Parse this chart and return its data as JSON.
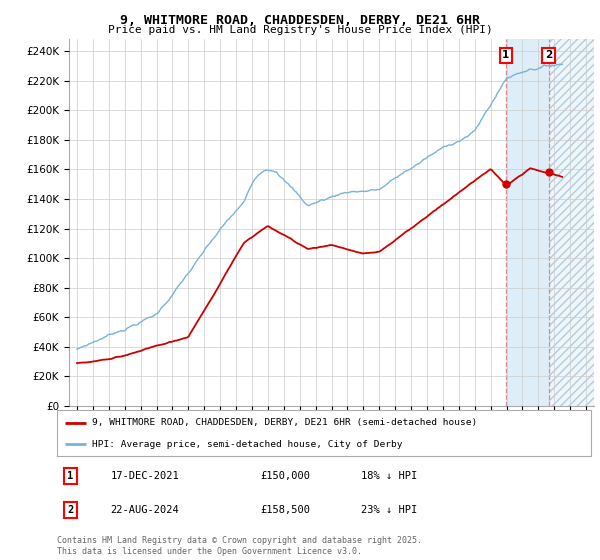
{
  "title": "9, WHITMORE ROAD, CHADDESDEN, DERBY, DE21 6HR",
  "subtitle": "Price paid vs. HM Land Registry's House Price Index (HPI)",
  "ylabel_ticks": [
    "£0",
    "£20K",
    "£40K",
    "£60K",
    "£80K",
    "£100K",
    "£120K",
    "£140K",
    "£160K",
    "£180K",
    "£200K",
    "£220K",
    "£240K"
  ],
  "ylim": [
    0,
    248000
  ],
  "xlim_start": 1994.5,
  "xlim_end": 2027.5,
  "hpi_color": "#7ab3d8",
  "price_color": "#cc0000",
  "vline_color": "#e08080",
  "marker1_x": 2021.96,
  "marker1_y": 150000,
  "marker2_x": 2024.64,
  "marker2_y": 158500,
  "vline1_x": 2021.96,
  "vline2_x": 2024.64,
  "shade_between_start": 2021.96,
  "shade_between_end": 2024.64,
  "hatch_start": 2024.64,
  "hatch_end": 2027.5,
  "legend_line1": "9, WHITMORE ROAD, CHADDESDEN, DERBY, DE21 6HR (semi-detached house)",
  "legend_line2": "HPI: Average price, semi-detached house, City of Derby",
  "table_rows": [
    {
      "label": "1",
      "date": "17-DEC-2021",
      "price": "£150,000",
      "pct": "18% ↓ HPI"
    },
    {
      "label": "2",
      "date": "22-AUG-2024",
      "price": "£158,500",
      "pct": "23% ↓ HPI"
    }
  ],
  "footer": "Contains HM Land Registry data © Crown copyright and database right 2025.\nThis data is licensed under the Open Government Licence v3.0.",
  "background_color": "#ffffff",
  "grid_color": "#cccccc",
  "shade_color": "#deeef8",
  "hatch_color": "#c0d8e8"
}
